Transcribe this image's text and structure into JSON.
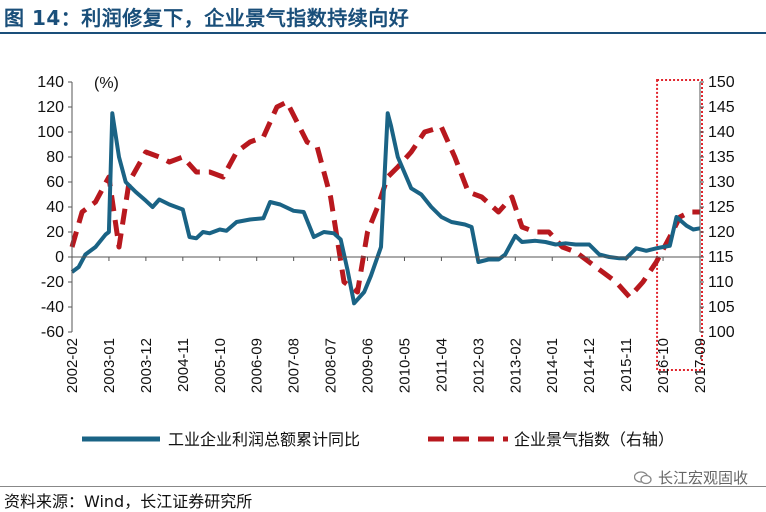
{
  "title": "图 14：利润修复下，企业景气指数持续向好",
  "source": "资料来源：Wind，长江证券研究所",
  "watermark": "长江宏观固收",
  "colors": {
    "profit": "#1a6385",
    "sentiment": "#b8181e",
    "highlight": "#e0242c",
    "title": "#1a4f7a"
  },
  "chart_data": {
    "type": "line",
    "unit_label": "(%)",
    "left_axis": {
      "min": -60,
      "max": 140,
      "step": 20,
      "ticks": [
        "140",
        "120",
        "100",
        "80",
        "60",
        "40",
        "20",
        "0",
        "-20",
        "-40",
        "-60"
      ]
    },
    "right_axis": {
      "min": 100,
      "max": 150,
      "step": 5,
      "ticks": [
        "150",
        "145",
        "140",
        "135",
        "130",
        "125",
        "120",
        "115",
        "110",
        "105",
        "100"
      ]
    },
    "x_ticks": [
      "2002-02",
      "2003-01",
      "2003-12",
      "2004-11",
      "2005-10",
      "2006-09",
      "2007-08",
      "2008-07",
      "2009-06",
      "2010-05",
      "2011-04",
      "2012-03",
      "2013-02",
      "2014-01",
      "2014-12",
      "2015-11",
      "2016-10",
      "2017-09"
    ],
    "highlight_range": [
      "2016-10",
      "2017-09"
    ],
    "series": [
      {
        "name": "工业企业利润总额累计同比",
        "axis": "left",
        "style": "solid",
        "points": [
          [
            "2002-02",
            -12
          ],
          [
            "2002-04",
            -8
          ],
          [
            "2002-06",
            2
          ],
          [
            "2002-09",
            8
          ],
          [
            "2002-12",
            18
          ],
          [
            "2003-01",
            20
          ],
          [
            "2003-02",
            115
          ],
          [
            "2003-04",
            80
          ],
          [
            "2003-06",
            60
          ],
          [
            "2003-09",
            52
          ],
          [
            "2003-12",
            45
          ],
          [
            "2004-02",
            40
          ],
          [
            "2004-04",
            46
          ],
          [
            "2004-07",
            42
          ],
          [
            "2004-09",
            40
          ],
          [
            "2004-11",
            38
          ],
          [
            "2005-01",
            16
          ],
          [
            "2005-03",
            15
          ],
          [
            "2005-05",
            20
          ],
          [
            "2005-07",
            19
          ],
          [
            "2005-10",
            22
          ],
          [
            "2005-12",
            21
          ],
          [
            "2006-03",
            28
          ],
          [
            "2006-07",
            30
          ],
          [
            "2006-11",
            31
          ],
          [
            "2007-01",
            44
          ],
          [
            "2007-04",
            42
          ],
          [
            "2007-08",
            37
          ],
          [
            "2007-11",
            36
          ],
          [
            "2008-02",
            16
          ],
          [
            "2008-05",
            20
          ],
          [
            "2008-08",
            19
          ],
          [
            "2008-10",
            14
          ],
          [
            "2008-12",
            -10
          ],
          [
            "2009-02",
            -37
          ],
          [
            "2009-05",
            -28
          ],
          [
            "2009-07",
            -15
          ],
          [
            "2009-10",
            8
          ],
          [
            "2009-12",
            115
          ],
          [
            "2010-01",
            105
          ],
          [
            "2010-03",
            80
          ],
          [
            "2010-07",
            55
          ],
          [
            "2010-10",
            50
          ],
          [
            "2011-01",
            40
          ],
          [
            "2011-04",
            32
          ],
          [
            "2011-07",
            28
          ],
          [
            "2011-11",
            26
          ],
          [
            "2012-01",
            24
          ],
          [
            "2012-03",
            -4
          ],
          [
            "2012-06",
            -2
          ],
          [
            "2012-09",
            -2
          ],
          [
            "2012-11",
            2
          ],
          [
            "2013-02",
            17
          ],
          [
            "2013-04",
            12
          ],
          [
            "2013-08",
            13
          ],
          [
            "2013-11",
            12
          ],
          [
            "2014-02",
            10
          ],
          [
            "2014-05",
            11
          ],
          [
            "2014-08",
            10
          ],
          [
            "2014-12",
            10
          ],
          [
            "2015-03",
            2
          ],
          [
            "2015-06",
            0
          ],
          [
            "2015-09",
            -1
          ],
          [
            "2015-11",
            -1
          ],
          [
            "2016-02",
            7
          ],
          [
            "2016-05",
            5
          ],
          [
            "2016-08",
            7
          ],
          [
            "2016-10",
            8
          ],
          [
            "2016-12",
            9
          ],
          [
            "2017-02",
            32
          ],
          [
            "2017-05",
            25
          ],
          [
            "2017-07",
            22
          ],
          [
            "2017-09",
            23
          ]
        ]
      },
      {
        "name": "企业景气指数（右轴）",
        "axis": "right",
        "style": "dashed",
        "points": [
          [
            "2002-02",
            117
          ],
          [
            "2002-05",
            124
          ],
          [
            "2002-09",
            126
          ],
          [
            "2003-01",
            131
          ],
          [
            "2003-04",
            117
          ],
          [
            "2003-07",
            130
          ],
          [
            "2003-12",
            136
          ],
          [
            "2004-04",
            135
          ],
          [
            "2004-07",
            134
          ],
          [
            "2004-11",
            135
          ],
          [
            "2005-03",
            132
          ],
          [
            "2005-07",
            132
          ],
          [
            "2005-11",
            131
          ],
          [
            "2006-03",
            136
          ],
          [
            "2006-07",
            138
          ],
          [
            "2006-11",
            139
          ],
          [
            "2007-03",
            145
          ],
          [
            "2007-06",
            146
          ],
          [
            "2007-09",
            142
          ],
          [
            "2007-12",
            138
          ],
          [
            "2008-03",
            137
          ],
          [
            "2008-07",
            127
          ],
          [
            "2008-11",
            110
          ],
          [
            "2009-03",
            108
          ],
          [
            "2009-06",
            120
          ],
          [
            "2009-09",
            125
          ],
          [
            "2009-12",
            131
          ],
          [
            "2010-03",
            133
          ],
          [
            "2010-07",
            136
          ],
          [
            "2010-11",
            140
          ],
          [
            "2011-04",
            141
          ],
          [
            "2011-08",
            135
          ],
          [
            "2011-12",
            128
          ],
          [
            "2012-04",
            127
          ],
          [
            "2012-09",
            124
          ],
          [
            "2013-01",
            127
          ],
          [
            "2013-04",
            121
          ],
          [
            "2013-08",
            120
          ],
          [
            "2013-12",
            120
          ],
          [
            "2014-04",
            117
          ],
          [
            "2014-08",
            116
          ],
          [
            "2014-12",
            114
          ],
          [
            "2015-04",
            112
          ],
          [
            "2015-08",
            110
          ],
          [
            "2015-12",
            107
          ],
          [
            "2016-04",
            110
          ],
          [
            "2016-08",
            114
          ],
          [
            "2016-12",
            119
          ],
          [
            "2017-03",
            123
          ],
          [
            "2017-06",
            124
          ],
          [
            "2017-09",
            124
          ]
        ]
      }
    ]
  }
}
